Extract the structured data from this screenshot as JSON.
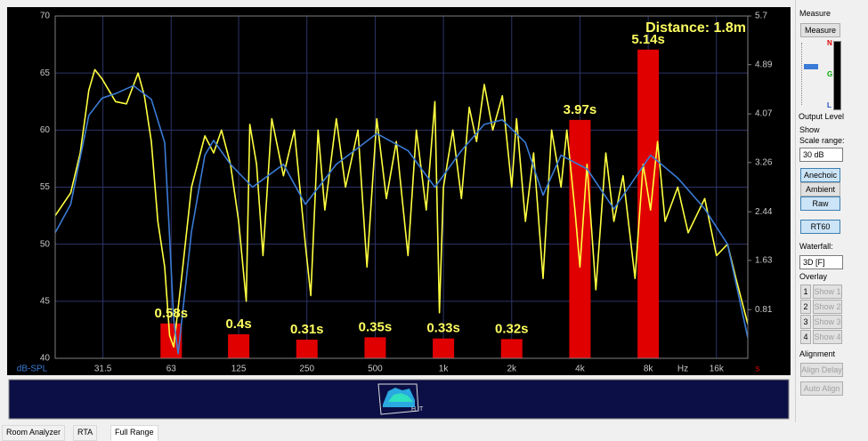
{
  "chart_data": {
    "type": "line",
    "annotation": "Distance: 1.8m",
    "y_label": "dB-SPL",
    "x_unit": "Hz",
    "y2_unit": "s",
    "x_scale": "log",
    "grid": true,
    "xlim": [
      19.4,
      22000
    ],
    "xticks": [
      31.5,
      63,
      125,
      250,
      500,
      {
        "value": 1000,
        "label": "1k"
      },
      {
        "value": 2000,
        "label": "2k"
      },
      {
        "value": 4000,
        "label": "4k"
      },
      {
        "value": 8000,
        "label": "8k"
      },
      {
        "value": 16000,
        "label": "16k"
      }
    ],
    "ylim": [
      40,
      70
    ],
    "yticks": [
      40,
      45,
      50,
      55,
      60,
      65,
      70
    ],
    "y2lim": [
      0,
      5.7
    ],
    "y2ticks": [
      0.81,
      1.63,
      2.44,
      3.26,
      4.07,
      4.89,
      5.7
    ],
    "series": [
      {
        "type": "bar",
        "axis": "y2",
        "color": "#e00000",
        "x": [
          63,
          125,
          250,
          500,
          1000,
          2000,
          4000,
          8000
        ],
        "values": [
          0.58,
          0.4,
          0.31,
          0.35,
          0.33,
          0.32,
          3.97,
          5.14
        ],
        "value_labels": [
          "0.58s",
          "0.4s",
          "0.31s",
          "0.35s",
          "0.33s",
          "0.32s",
          "3.97s",
          "5.14s"
        ]
      },
      {
        "type": "line",
        "color": "#ffff40",
        "x": [
          19.4,
          22.7,
          25,
          27.3,
          29,
          31.2,
          35.8,
          40,
          45,
          48,
          51.5,
          55,
          59,
          62,
          64.6,
          70,
          77.4,
          88.7,
          97,
          105,
          115,
          125,
          135,
          140,
          150,
          160,
          175,
          197,
          220,
          246,
          260,
          280,
          300,
          337,
          370,
          420,
          460,
          508,
          560,
          620,
          698,
          760,
          840,
          917,
          960,
          1000,
          1100,
          1200,
          1300,
          1400,
          1515,
          1650,
          1820,
          2000,
          2100,
          2300,
          2500,
          2750,
          3000,
          3300,
          3500,
          3800,
          4000,
          4300,
          4700,
          5200,
          5650,
          6200,
          7000,
          7600,
          8200,
          8800,
          9500,
          10800,
          12000,
          14200,
          16000,
          17900,
          19500,
          22000
        ],
        "values": [
          52.5,
          54.5,
          58,
          63.5,
          65.3,
          64.5,
          62.5,
          62.3,
          65,
          63,
          59,
          52,
          48,
          42,
          41,
          47,
          55,
          59.5,
          58,
          60,
          57,
          52,
          45,
          60.5,
          57,
          49,
          61,
          56,
          60,
          50,
          45.5,
          60,
          53,
          61,
          55,
          60,
          48,
          61,
          54,
          59,
          49,
          60,
          53,
          62.5,
          44,
          55,
          60,
          54,
          62,
          59,
          64,
          60,
          63,
          55,
          61,
          52,
          58,
          47,
          60,
          55,
          60,
          53,
          48,
          57,
          46,
          58,
          52,
          56,
          47,
          57,
          53,
          59,
          52,
          55,
          51,
          54,
          49,
          50,
          47,
          43
        ]
      },
      {
        "type": "line",
        "color": "#3a7bd5",
        "x": [
          19.4,
          22.7,
          27.3,
          31.2,
          35.8,
          42.9,
          51.5,
          59,
          61.8,
          64.6,
          67.6,
          77.4,
          88.7,
          96.9,
          115,
          144,
          197,
          246,
          337,
          508,
          698,
          917,
          1200,
          1515,
          1820,
          2300,
          2750,
          3300,
          4300,
          5650,
          8200,
          10800,
          14200,
          17900,
          22000
        ],
        "values": [
          51,
          53.5,
          61.3,
          62.8,
          63.2,
          63.9,
          62.7,
          58.9,
          51.1,
          43.4,
          40.4,
          51.1,
          57.8,
          59.1,
          57,
          55,
          57,
          53.5,
          57,
          59.7,
          58.2,
          55,
          58.2,
          60.5,
          60.9,
          58.9,
          54.3,
          57.8,
          56.6,
          53.1,
          57.8,
          55.8,
          53.1,
          50,
          41.8
        ]
      }
    ]
  },
  "panel": {
    "measure_group": "Measure",
    "measure_button": "Measure",
    "meter_labels": [
      "N",
      "G",
      "L"
    ],
    "output_level": "Output Level",
    "show_group": "Show",
    "scale_range_label": "Scale range:",
    "scale_range_value": "30 dB",
    "show_buttons": [
      "Anechoic",
      "Ambient",
      "Raw"
    ],
    "rt60_button": "RT60",
    "waterfall_label": "Waterfall:",
    "waterfall_value": "3D [F]",
    "overlay_group": "Overlay",
    "overlay_rows": [
      {
        "number": 1,
        "button": "Show 1"
      },
      {
        "number": 2,
        "button": "Show 2"
      },
      {
        "number": 3,
        "button": "Show 3"
      },
      {
        "number": 4,
        "button": "Show 4"
      }
    ],
    "alignment_group": "Alignment",
    "alignment_buttons": [
      "Align Delay",
      "Auto Align"
    ]
  },
  "tabs": [
    "Room Analyzer",
    "RTA",
    "Full Range"
  ]
}
